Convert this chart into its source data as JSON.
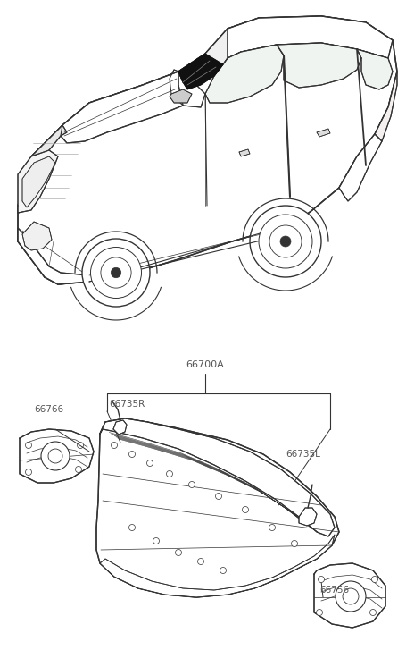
{
  "bg_color": "#ffffff",
  "line_color": "#333333",
  "label_color": "#555555",
  "figsize": [
    4.56,
    7.27
  ],
  "dpi": 100,
  "label_66700A": "66700A",
  "label_66735R": "66735R",
  "label_66766": "66766",
  "label_66735L": "66735L",
  "label_66756": "66756",
  "font_size_labels": 7.5,
  "font_size_main": 8.0
}
